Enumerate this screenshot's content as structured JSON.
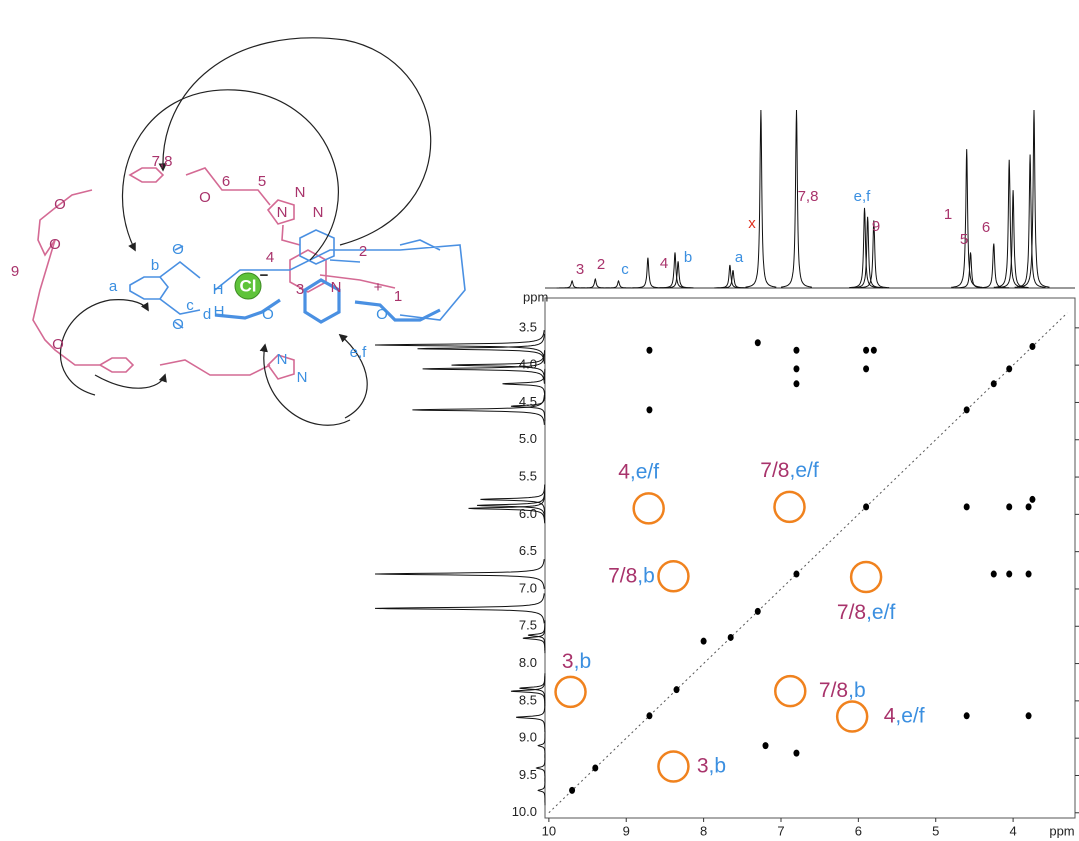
{
  "chart_data": {
    "type": "scatter",
    "xlabel": "ppm",
    "ylabel": "ppm",
    "xlim": [
      10.05,
      3.2
    ],
    "ylim": [
      3.1,
      10.07
    ],
    "xticks": [
      10,
      9,
      8,
      7,
      6,
      5,
      4
    ],
    "yticks": [
      3.5,
      {
        "value": 4,
        "label": "4.0"
      },
      4.5,
      {
        "value": 5,
        "label": "5.0"
      },
      5.5,
      {
        "value": 6,
        "label": "6.0"
      },
      6.5,
      {
        "value": 7,
        "label": "7.0"
      },
      7.5,
      {
        "value": 8,
        "label": "8.0"
      },
      8.5,
      {
        "value": 9,
        "label": "9.0"
      },
      9.5,
      {
        "value": 10,
        "label": "10.0"
      }
    ],
    "series": [
      {
        "color": "#000000",
        "x": [
          3.75,
          4.05,
          4.25,
          4.6,
          5.9,
          6.8,
          7.3,
          7.65,
          8.35,
          8.7,
          9.4,
          9.7,
          8.7,
          8.7,
          7.3,
          6.8,
          6.8,
          6.8,
          5.9,
          5.8,
          5.9,
          4.05,
          3.8,
          3.75,
          4.6,
          4.25,
          4.05,
          3.8,
          4.6,
          3.8,
          8.0,
          7.2,
          6.8
        ],
        "y": [
          3.75,
          4.05,
          4.25,
          4.6,
          5.9,
          6.8,
          7.3,
          7.65,
          8.35,
          8.7,
          9.4,
          9.7,
          3.8,
          4.6,
          3.7,
          3.8,
          4.05,
          4.25,
          3.8,
          3.8,
          4.05,
          5.9,
          5.9,
          5.8,
          5.9,
          6.8,
          6.8,
          6.8,
          8.7,
          8.7,
          7.7,
          9.1,
          9.2
        ]
      }
    ],
    "annotations": [
      {
        "text": "4,e/f",
        "x": 8.71,
        "y": 5.92
      },
      {
        "text": "7/8,e/f",
        "x": 6.89,
        "y": 5.9
      },
      {
        "text": "7/8,b",
        "x": 8.39,
        "y": 6.83
      },
      {
        "text": "7/8,e/f",
        "x": 5.9,
        "y": 6.84
      },
      {
        "text": "3,b",
        "x": 9.72,
        "y": 8.38
      },
      {
        "text": "7/8,b",
        "x": 6.88,
        "y": 8.37
      },
      {
        "text": "4,e/f",
        "x": 6.08,
        "y": 8.71
      },
      {
        "text": "3,b",
        "x": 8.39,
        "y": 9.38
      }
    ],
    "spectrum": {
      "ppm": [
        9.7,
        9.4,
        9.1,
        8.72,
        8.37,
        8.33,
        7.66,
        7.62,
        7.26,
        6.8,
        5.92,
        5.88,
        5.8,
        4.6,
        4.55,
        4.25,
        4.05,
        4.0,
        3.78,
        3.73
      ],
      "height": [
        0.04,
        0.05,
        0.04,
        0.17,
        0.2,
        0.15,
        0.13,
        0.1,
        1,
        1,
        0.45,
        0.4,
        0.38,
        0.78,
        0.2,
        0.25,
        0.72,
        0.55,
        0.75,
        1
      ]
    },
    "peak_labels": [
      {
        "text": "3",
        "color": "#a8336b"
      },
      {
        "text": "2",
        "color": "#a8336b"
      },
      {
        "text": "c",
        "color": "#3b8fe0"
      },
      {
        "text": "4",
        "color": "#a8336b"
      },
      {
        "text": "b",
        "color": "#3b8fe0"
      },
      {
        "text": "a",
        "color": "#3b8fe0"
      },
      {
        "text": "x",
        "color": "#e0301e"
      },
      {
        "text": "7,8",
        "color": "#a8336b"
      },
      {
        "text": "e,f",
        "color": "#3b8fe0"
      },
      {
        "text": "9",
        "color": "#a8336b"
      },
      {
        "text": "1",
        "color": "#a8336b"
      },
      {
        "text": "5",
        "color": "#a8336b"
      },
      {
        "text": "6",
        "color": "#a8336b"
      }
    ]
  },
  "structure": {
    "labels": [
      {
        "text": "7,8",
        "color": "#a8336b"
      },
      {
        "text": "6",
        "color": "#a8336b"
      },
      {
        "text": "5",
        "color": "#a8336b"
      },
      {
        "text": "4",
        "color": "#a8336b"
      },
      {
        "text": "2",
        "color": "#a8336b"
      },
      {
        "text": "3",
        "color": "#a8336b"
      },
      {
        "text": "1",
        "color": "#a8336b"
      },
      {
        "text": "9",
        "color": "#a8336b"
      },
      {
        "text": "a",
        "color": "#3b8fe0"
      },
      {
        "text": "b",
        "color": "#3b8fe0"
      },
      {
        "text": "c",
        "color": "#3b8fe0"
      },
      {
        "text": "d",
        "color": "#3b8fe0"
      },
      {
        "text": "H",
        "color": "#3b8fe0"
      },
      {
        "text": "H",
        "color": "#3b8fe0"
      },
      {
        "text": "e,f",
        "color": "#3b8fe0"
      },
      {
        "text": "N",
        "color": "#a8336b"
      },
      {
        "text": "N",
        "color": "#a8336b"
      },
      {
        "text": "N",
        "color": "#a8336b"
      },
      {
        "text": "N",
        "color": "#a8336b"
      },
      {
        "text": "N",
        "color": "#3b8fe0"
      },
      {
        "text": "N",
        "color": "#3b8fe0"
      },
      {
        "text": "O",
        "color": "#a8336b"
      },
      {
        "text": "O",
        "color": "#a8336b"
      },
      {
        "text": "O",
        "color": "#a8336b"
      },
      {
        "text": "O",
        "color": "#a8336b"
      },
      {
        "text": "O",
        "color": "#3b8fe0"
      },
      {
        "text": "O",
        "color": "#3b8fe0"
      },
      {
        "text": "O",
        "color": "#3b8fe0"
      },
      {
        "text": "O",
        "color": "#3b8fe0"
      },
      {
        "text": "+",
        "color": "#a8336b"
      }
    ],
    "anion": "Cl",
    "anion_charge": "−"
  }
}
